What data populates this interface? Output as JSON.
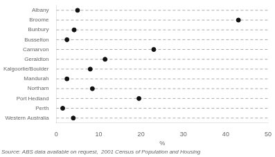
{
  "chart_data": {
    "type": "dot",
    "categories": [
      "Albany",
      "Broome",
      "Bunbury",
      "Busselton",
      "Carnarvon",
      "Geraldton",
      "Kalgoorlie/Boulder",
      "Mandurah",
      "Northam",
      "Port Hedland",
      "Perth",
      "Western Australia"
    ],
    "values": [
      5.0,
      43.0,
      4.2,
      2.5,
      23.0,
      11.5,
      8.0,
      2.5,
      8.5,
      19.5,
      1.5,
      4.0
    ],
    "orientation": "horizontal",
    "color": "#111111",
    "line_style": "dashed",
    "xlim": [
      0,
      50
    ],
    "xticks": [
      0,
      10,
      20,
      30,
      40,
      50
    ],
    "xlabel": "%",
    "grid": false,
    "annotation": "Source: ABS data available on request,  2001 Census of Population and Housing"
  }
}
